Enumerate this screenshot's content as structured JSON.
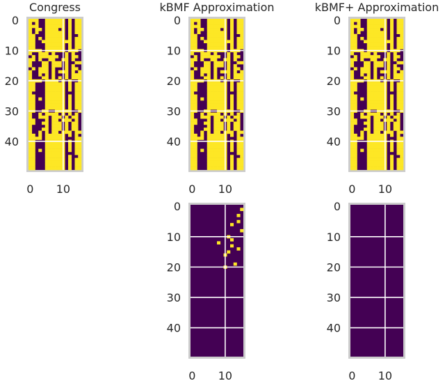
{
  "colors": {
    "one": "#fde725",
    "zero": "#440154",
    "frame": "#cccccc",
    "grid": "#ffffff",
    "text": "#262626"
  },
  "chart_data": [
    {
      "type": "heatmap",
      "title": "Congress",
      "rows": 50,
      "cols": 16,
      "xticks": [
        0,
        10
      ],
      "yticks": [
        0,
        10,
        20,
        30,
        40
      ],
      "grid": true,
      "matrix": [
        "1110011111101011",
        "1010011111101011",
        "1110011111101011",
        "1011011110101011",
        "1010011111101011",
        "1100011111101001",
        "1101011111101011",
        "1100111111111011",
        "1100011111101011",
        "1100011111101011",
        "1111011111101110",
        "1001110100010100",
        "0101111110010110",
        "1101001100110100",
        "1000110111010011",
        "1000110111010100",
        "0101110100010110",
        "1001110101110101",
        "1001010100010111",
        "1000110101010111",
        "1111011110101001",
        "1100011111101011",
        "1100011111101011",
        "1100011111101011",
        "1000011111100011",
        "1100011111101011",
        "1101011111101011",
        "1100011111101011",
        "1100011111101011",
        "1100011111101011",
        "1100110011111001",
        "1001011110101010",
        "1001110111010110",
        "1100010110111010",
        "1100110111010110",
        "1000010111010110",
        "1000110111010110",
        "1001010110111011",
        "1101011111101010",
        "1111011111100011",
        "1100011111101011",
        "1100011111101011",
        "1100011111101011",
        "1101011111101011",
        "1100011111100011",
        "1100011111101001",
        "1100011111101011",
        "1100011111101011",
        "1100011111101011",
        "1100011111101011"
      ]
    },
    {
      "type": "heatmap",
      "title": "kBMF Approximation",
      "rows": 50,
      "cols": 16,
      "xticks": [
        0,
        10
      ],
      "yticks": [
        0,
        10,
        20,
        30,
        40
      ],
      "grid": true,
      "matrix": [
        "1110011111101011",
        "1010011111101011",
        "1110011111101011",
        "1011011110101011",
        "1010011111101011",
        "1100011111101001",
        "1101011111101011",
        "1100111111111011",
        "1100011111101011",
        "1100011111101011",
        "1111011111101110",
        "1001110100010100",
        "0101111110010110",
        "1101001100110100",
        "1000110111010011",
        "1000110111010100",
        "0101110100010110",
        "1001110101110101",
        "1001010100010111",
        "1000110101010111",
        "1111011110101001",
        "1100011111101011",
        "1100011111101011",
        "1100011111101011",
        "1000011111100011",
        "1100011111101011",
        "1101011111101011",
        "1100011111101011",
        "1100011111101011",
        "1100011111101011",
        "1100110011111001",
        "1001011110101010",
        "1001110111010110",
        "1100010110111010",
        "1100110111010110",
        "1000010111010110",
        "1000110111010110",
        "1001010110111011",
        "1101011111101010",
        "1111011111100011",
        "1100011111101011",
        "1100011111101011",
        "1100011111101011",
        "1101011111101011",
        "1100011111100011",
        "1100011111101001",
        "1100011111101011",
        "1100011111101011",
        "1100011111101011",
        "1100011111101011"
      ]
    },
    {
      "type": "heatmap",
      "title": "kBMF+ Approximation",
      "rows": 50,
      "cols": 16,
      "xticks": [
        0,
        10
      ],
      "yticks": [
        0,
        10,
        20,
        30,
        40
      ],
      "grid": true,
      "matrix": [
        "1110011111101011",
        "1010011111101011",
        "1110011111101011",
        "1011011110101011",
        "1010011111101011",
        "1100011111101001",
        "1101011111101011",
        "1100111111111011",
        "1100011111101011",
        "1100011111101011",
        "1111011111101110",
        "1001110100010100",
        "0101111110010110",
        "1101001100110100",
        "1000110111010011",
        "1000110111010100",
        "0101110100010110",
        "1001110101110101",
        "1001010100010111",
        "1000110101010111",
        "1111011110101001",
        "1100011111101011",
        "1100011111101011",
        "1100011111101011",
        "1000011111100011",
        "1100011111101011",
        "1101011111101011",
        "1100011111101011",
        "1100011111101011",
        "1100011111101011",
        "1100110011111001",
        "1001011110101010",
        "1001110111010110",
        "1100010110111010",
        "1100110111010110",
        "1000010111010110",
        "1000110111010110",
        "1001010110111011",
        "1101011111101010",
        "1111011111100011",
        "1100011111101011",
        "1100011111101011",
        "1100011111101011",
        "1101011111101011",
        "1100011111100011",
        "1100011111101001",
        "1100011111101011",
        "1100011111101011",
        "1100011111101011",
        "1100011111101011"
      ]
    },
    {
      "type": "heatmap",
      "title": "",
      "rows": 50,
      "cols": 16,
      "xticks": [
        0,
        10
      ],
      "yticks": [
        0,
        10,
        20,
        30,
        40
      ],
      "grid": true,
      "matrix": [
        "0000000000000000",
        "0000000000000001",
        "0000000000000000",
        "0000000000000010",
        "0000000000000000",
        "0000000000000010",
        "0000000000001000",
        "0000000000000000",
        "0000000000000001",
        "0000000000000000",
        "0000000000010000",
        "0000000000001000",
        "0000000010000000",
        "0000000000001000",
        "0000000000000010",
        "0000000000010000",
        "0000000000100000",
        "0000000000000000",
        "0000000000000000",
        "0000000000000100",
        "0000000000100000",
        "0000000000000000",
        "0000000000000000",
        "0000000000000000",
        "0000000000000000",
        "0000000000000000",
        "0000000000000000",
        "0000000000000000",
        "0000000000000000",
        "0000000000000000",
        "0000000000000000",
        "0000000000000000",
        "0000000000000000",
        "0000000000000000",
        "0000000000000000",
        "0000000000000000",
        "0000000000000000",
        "0000000000000000",
        "0000000000000000",
        "0000000000000000",
        "0000000000000000",
        "0000000000000000",
        "0000000000000000",
        "0000000000000000",
        "0000000000000000",
        "0000000000000000",
        "0000000000000000",
        "0000000000000000",
        "0000000000000000",
        "0000000000000000"
      ]
    },
    {
      "type": "heatmap",
      "title": "",
      "rows": 50,
      "cols": 16,
      "xticks": [
        0,
        10
      ],
      "yticks": [
        0,
        10,
        20,
        30,
        40
      ],
      "grid": true,
      "matrix": [
        "0000000000000000",
        "0000000000000000",
        "0000000000000000",
        "0000000000000000",
        "0000000000000000",
        "0000000000000000",
        "0000000000000000",
        "0000000000000000",
        "0000000000000000",
        "0000000000000000",
        "0000000000000000",
        "0000000000000000",
        "0000000000000000",
        "0000000000000000",
        "0000000000000000",
        "0000000000000000",
        "0000000000000000",
        "0000000000000000",
        "0000000000000000",
        "0000000000000000",
        "0000000000000000",
        "0000000000000000",
        "0000000000000000",
        "0000000000000000",
        "0000000000000000",
        "0000000000000000",
        "0000000000000000",
        "0000000000000000",
        "0000000000000000",
        "0000000000000000",
        "0000000000000000",
        "0000000000000000",
        "0000000000000000",
        "0000000000000000",
        "0000000000000000",
        "0000000000000000",
        "0000000000000000",
        "0000000000000000",
        "0000000000000000",
        "0000000000000000",
        "0000000000000000",
        "0000000000000000",
        "0000000000000000",
        "0000000000000000",
        "0000000000000000",
        "0000000000000000",
        "0000000000000000",
        "0000000000000000",
        "0000000000000000",
        "0000000000000000"
      ]
    }
  ]
}
